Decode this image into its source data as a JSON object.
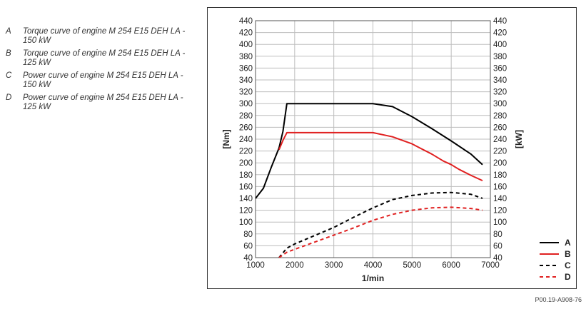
{
  "legend_descriptions": [
    {
      "letter": "A",
      "text": "Torque curve of engine M 254 E15 DEH LA - 150 kW"
    },
    {
      "letter": "B",
      "text": "Torque curve of engine M 254 E15 DEH LA - 125 kW"
    },
    {
      "letter": "C",
      "text": "Power curve of engine M 254 E15 DEH LA - 150 kW"
    },
    {
      "letter": "D",
      "text": "Power curve of engine M 254 E15 DEH LA - 125 kW"
    }
  ],
  "figure_code": "P00.19-A908-76",
  "chart_data": {
    "type": "line",
    "title": "",
    "xlabel": "1/min",
    "ylabel_left": "[Nm]",
    "ylabel_right": "[kW]",
    "xlim": [
      1000,
      7000
    ],
    "ylim": [
      40,
      440
    ],
    "x_ticks": [
      1000,
      2000,
      3000,
      4000,
      5000,
      6000,
      7000
    ],
    "y_ticks": [
      40,
      60,
      80,
      100,
      120,
      140,
      160,
      180,
      200,
      220,
      240,
      260,
      280,
      300,
      320,
      340,
      360,
      380,
      400,
      420,
      440
    ],
    "grid": true,
    "legend_position": "bottom-right",
    "series": [
      {
        "name": "A",
        "color": "#000000",
        "dash": "solid",
        "x": [
          1000,
          1200,
          1400,
          1600,
          1700,
          1800,
          2000,
          3000,
          4000,
          4500,
          5000,
          5500,
          6000,
          6500,
          6800
        ],
        "y": [
          140,
          157,
          192,
          225,
          253,
          300,
          300,
          300,
          300,
          295,
          278,
          258,
          237,
          215,
          197
        ]
      },
      {
        "name": "B",
        "color": "#e02020",
        "dash": "solid",
        "x": [
          1600,
          1700,
          1800,
          2000,
          3000,
          4000,
          4500,
          5000,
          5200,
          5500,
          5800,
          6000,
          6200,
          6500,
          6800
        ],
        "y": [
          222,
          238,
          251,
          251,
          251,
          251,
          244,
          232,
          225,
          215,
          203,
          197,
          189,
          179,
          170
        ]
      },
      {
        "name": "C",
        "color": "#000000",
        "dash": "dashed",
        "x": [
          1600,
          1800,
          2000,
          2500,
          3000,
          3500,
          4000,
          4500,
          5000,
          5500,
          6000,
          6500,
          6800
        ],
        "y": [
          40,
          56,
          63,
          77,
          91,
          108,
          124,
          138,
          145,
          149,
          150,
          147,
          140
        ]
      },
      {
        "name": "D",
        "color": "#e02020",
        "dash": "dashed",
        "x": [
          1600,
          1800,
          2000,
          2500,
          3000,
          3500,
          4000,
          4500,
          5000,
          5500,
          6000,
          6500,
          6800
        ],
        "y": [
          40,
          49,
          54,
          66,
          78,
          90,
          103,
          113,
          120,
          124,
          125,
          123,
          120
        ]
      }
    ]
  }
}
